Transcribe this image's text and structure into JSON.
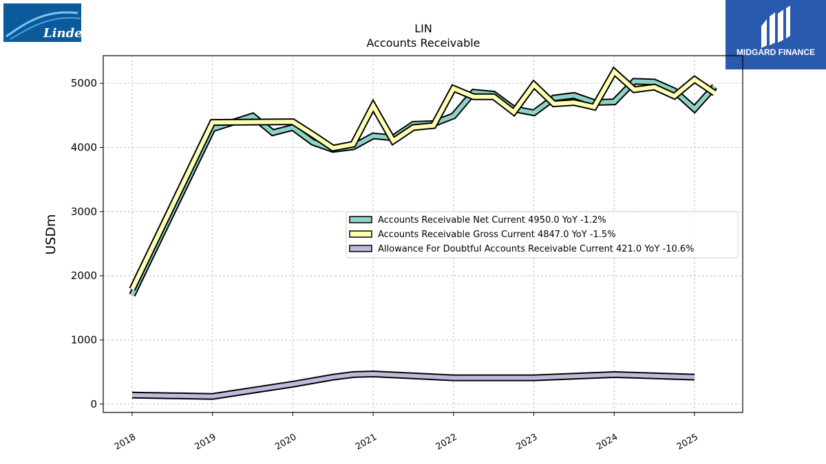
{
  "logos": {
    "left": {
      "text": "Linde",
      "bg_color": "#0a5a9c"
    },
    "right": {
      "text": "MIDGARD FINANCE",
      "bg_color": "#2a5aad"
    }
  },
  "chart_data": {
    "type": "line",
    "title": "LIN",
    "subtitle": "Accounts Receivable",
    "ylabel": "USDm",
    "xlabel": "",
    "ylim": [
      -130,
      5430
    ],
    "xlim": [
      2017.64,
      2025.6
    ],
    "yticks": [
      0,
      1000,
      2000,
      3000,
      4000,
      5000
    ],
    "xticks": [
      "2018",
      "2019",
      "2020",
      "2021",
      "2022",
      "2023",
      "2024",
      "2025"
    ],
    "grid": true,
    "legend_position": "center-right",
    "series": [
      {
        "name": "Accounts Receivable Net Current  4950.0 YoY -1.2%",
        "color": "#8dd3c7",
        "points": [
          [
            "2018-01-01",
            1700
          ],
          [
            "2019-01-01",
            4290
          ],
          [
            "2019-07-01",
            4490
          ],
          [
            "2019-10-01",
            4230
          ],
          [
            "2020-01-01",
            4310
          ],
          [
            "2020-04-01",
            4080
          ],
          [
            "2020-07-01",
            3970
          ],
          [
            "2020-10-01",
            4010
          ],
          [
            "2021-01-01",
            4180
          ],
          [
            "2021-04-01",
            4150
          ],
          [
            "2021-07-01",
            4360
          ],
          [
            "2021-10-01",
            4370
          ],
          [
            "2022-01-01",
            4490
          ],
          [
            "2022-04-01",
            4860
          ],
          [
            "2022-07-01",
            4830
          ],
          [
            "2022-10-01",
            4600
          ],
          [
            "2023-01-01",
            4540
          ],
          [
            "2023-04-01",
            4770
          ],
          [
            "2023-07-01",
            4810
          ],
          [
            "2023-10-01",
            4700
          ],
          [
            "2024-01-01",
            4710
          ],
          [
            "2024-04-01",
            5030
          ],
          [
            "2024-07-01",
            5020
          ],
          [
            "2024-10-01",
            4880
          ],
          [
            "2025-01-01",
            4600
          ],
          [
            "2025-04-01",
            4950
          ]
        ]
      },
      {
        "name": "Accounts Receivable Gross Current  4847.0 YoY -1.5%",
        "color": "#ffffb3",
        "points": [
          [
            "2018-01-01",
            1790
          ],
          [
            "2019-01-01",
            4390
          ],
          [
            "2020-01-01",
            4400
          ],
          [
            "2020-04-01",
            4200
          ],
          [
            "2020-07-01",
            3990
          ],
          [
            "2020-10-01",
            4050
          ],
          [
            "2021-01-01",
            4650
          ],
          [
            "2021-04-01",
            4100
          ],
          [
            "2021-07-01",
            4310
          ],
          [
            "2021-10-01",
            4340
          ],
          [
            "2022-01-01",
            4920
          ],
          [
            "2022-04-01",
            4790
          ],
          [
            "2022-07-01",
            4790
          ],
          [
            "2022-10-01",
            4550
          ],
          [
            "2023-01-01",
            4980
          ],
          [
            "2023-04-01",
            4680
          ],
          [
            "2023-07-01",
            4700
          ],
          [
            "2023-10-01",
            4630
          ],
          [
            "2024-01-01",
            5180
          ],
          [
            "2024-04-01",
            4900
          ],
          [
            "2024-07-01",
            4940
          ],
          [
            "2024-10-01",
            4800
          ],
          [
            "2025-01-01",
            5060
          ],
          [
            "2025-04-01",
            4847
          ]
        ]
      },
      {
        "name": "Allowance For Doubtful Accounts Receivable Current  421.0 YoY -10.6%",
        "color": "#bebada",
        "points": [
          [
            "2018-01-01",
            140
          ],
          [
            "2019-01-01",
            120
          ],
          [
            "2020-01-01",
            310
          ],
          [
            "2020-07-01",
            420
          ],
          [
            "2020-10-01",
            460
          ],
          [
            "2021-01-01",
            470
          ],
          [
            "2022-01-01",
            410
          ],
          [
            "2023-01-01",
            410
          ],
          [
            "2024-01-01",
            460
          ],
          [
            "2025-01-01",
            421
          ]
        ]
      }
    ]
  }
}
